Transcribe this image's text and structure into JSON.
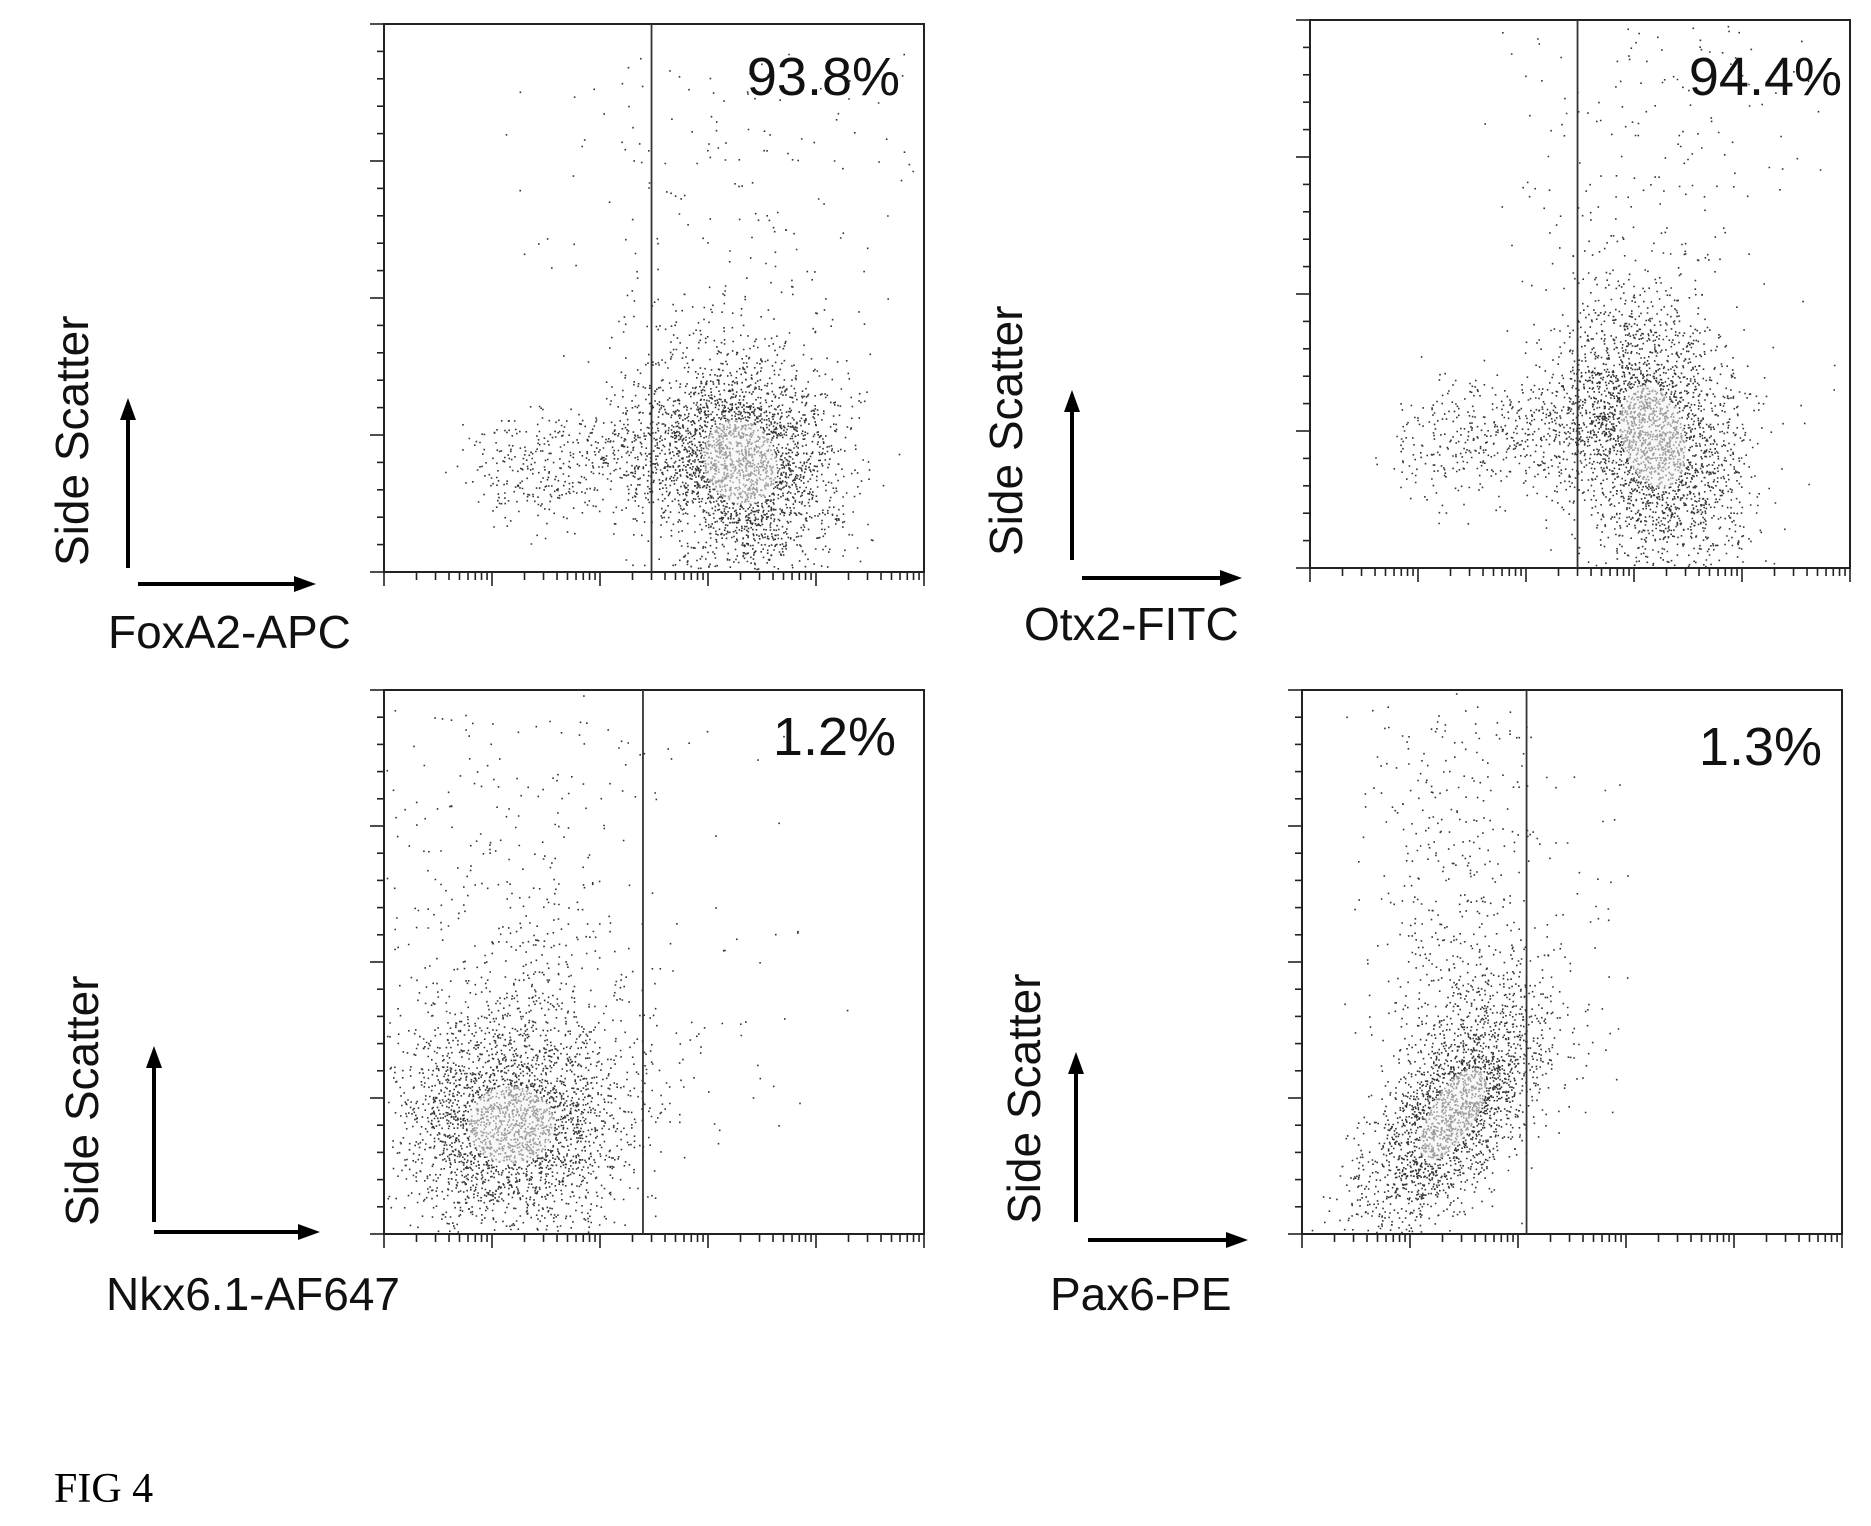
{
  "figure": {
    "caption": "FIG 4",
    "colors": {
      "ink": "#111111",
      "dots": "#333333",
      "core": "#f2f2f2",
      "gate": "#333333"
    }
  },
  "chart_data": [
    {
      "type": "scatter",
      "title": "",
      "xlabel": "FoxA2-APC",
      "ylabel": "Side Scatter",
      "x_scale": "log",
      "xlim": [
        0.1,
        10000
      ],
      "ylim": [
        0,
        1
      ],
      "grid": false,
      "gate_x": 30,
      "gate_percent_label": "93.8%",
      "gate_percent": 93.8,
      "population_center": [
        200,
        0.2
      ],
      "population_shape": "upright ellipse with diffuse tail toward low x",
      "y_ticks_major": 4,
      "y_ticks_minor": 5
    },
    {
      "type": "scatter",
      "title": "",
      "xlabel": "Otx2-FITC",
      "ylabel": "Side Scatter",
      "x_scale": "log",
      "xlim": [
        0.1,
        10000
      ],
      "ylim": [
        0,
        1
      ],
      "grid": false,
      "gate_x": 30,
      "gate_percent_label": "94.4%",
      "gate_percent": 94.4,
      "population_center": [
        150,
        0.24
      ],
      "population_shape": "upright ellipse with diffuse tail toward low x",
      "y_ticks_major": 4,
      "y_ticks_minor": 5
    },
    {
      "type": "scatter",
      "title": "",
      "xlabel": "Nkx6.1-AF647",
      "ylabel": "Side Scatter",
      "x_scale": "log",
      "xlim": [
        0.1,
        10000
      ],
      "ylim": [
        0,
        1
      ],
      "grid": false,
      "gate_x": 25,
      "gate_percent_label": "1.2%",
      "gate_percent": 1.2,
      "population_center": [
        1.5,
        0.2
      ],
      "population_shape": "compact ellipse below the gate",
      "y_ticks_major": 4,
      "y_ticks_minor": 5
    },
    {
      "type": "scatter",
      "title": "",
      "xlabel": "Pax6-PE",
      "ylabel": "Side Scatter",
      "x_scale": "log",
      "xlim": [
        0.1,
        10000
      ],
      "ylim": [
        0,
        1
      ],
      "grid": false,
      "gate_x": 12,
      "gate_percent_label": "1.3%",
      "gate_percent": 1.3,
      "population_center": [
        2.5,
        0.22
      ],
      "population_shape": "narrow diagonal ellipse below the gate",
      "y_ticks_major": 4,
      "y_ticks_minor": 5
    }
  ]
}
